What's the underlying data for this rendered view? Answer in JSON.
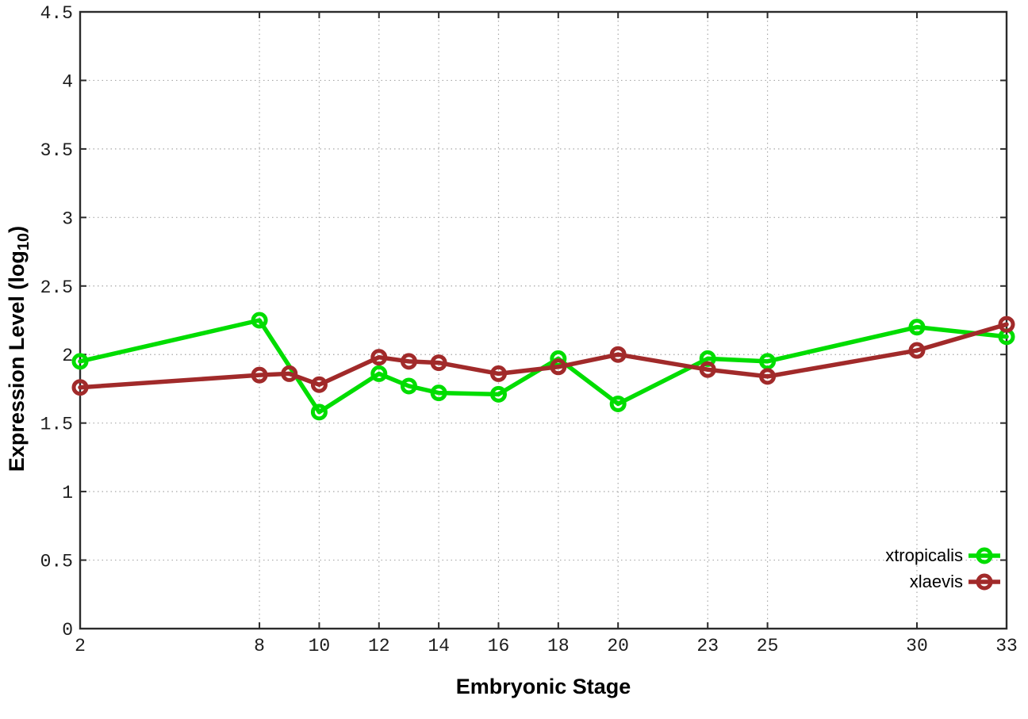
{
  "figure": {
    "background": "#ffffff",
    "border_color": "#2b2b2b",
    "grid_color": "#a8a8a8",
    "tick_label_color": "#1c1c1c"
  },
  "chart_data": {
    "type": "line",
    "title": "",
    "xlabel": "Embryonic Stage",
    "ylabel": "Expression Level (log10)",
    "ylabel_parts": {
      "main": "Expression Level (log",
      "sub": "10",
      "end": ")"
    },
    "xlim": [
      2,
      33
    ],
    "ylim": [
      0,
      4.5
    ],
    "x_ticks": [
      2,
      8,
      10,
      12,
      14,
      16,
      18,
      20,
      23,
      25,
      30,
      33
    ],
    "x_tick_labels": [
      "2",
      "8",
      "10",
      "12",
      "14",
      "16",
      "18",
      "20",
      "23",
      "25",
      "30",
      "33"
    ],
    "y_ticks": [
      0,
      0.5,
      1,
      1.5,
      2,
      2.5,
      3,
      3.5,
      4,
      4.5
    ],
    "y_tick_labels": [
      "0",
      "0.5",
      "1",
      "1.5",
      "2",
      "2.5",
      "3",
      "3.5",
      "4",
      "4.5"
    ],
    "grid": true,
    "legend_position": "bottom-right",
    "marker": "open-circle",
    "series": [
      {
        "name": "xtropicalis",
        "color": "#00dd00",
        "points": [
          [
            2,
            1.95
          ],
          [
            8,
            2.25
          ],
          [
            10,
            1.58
          ],
          [
            12,
            1.86
          ],
          [
            13,
            1.77
          ],
          [
            14,
            1.72
          ],
          [
            16,
            1.71
          ],
          [
            18,
            1.97
          ],
          [
            20,
            1.64
          ],
          [
            23,
            1.97
          ],
          [
            25,
            1.95
          ],
          [
            30,
            2.2
          ],
          [
            33,
            2.13
          ]
        ]
      },
      {
        "name": "xlaevis",
        "color": "#a12a2a",
        "points": [
          [
            2,
            1.76
          ],
          [
            8,
            1.85
          ],
          [
            9,
            1.86
          ],
          [
            10,
            1.78
          ],
          [
            12,
            1.98
          ],
          [
            13,
            1.95
          ],
          [
            14,
            1.94
          ],
          [
            16,
            1.86
          ],
          [
            18,
            1.91
          ],
          [
            20,
            2.0
          ],
          [
            23,
            1.89
          ],
          [
            25,
            1.84
          ],
          [
            30,
            2.03
          ],
          [
            33,
            2.22
          ]
        ]
      }
    ]
  }
}
